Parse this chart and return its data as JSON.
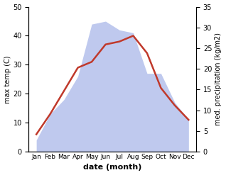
{
  "months": [
    "Jan",
    "Feb",
    "Mar",
    "Apr",
    "May",
    "Jun",
    "Jul",
    "Aug",
    "Sep",
    "Oct",
    "Nov",
    "Dec"
  ],
  "temperature": [
    6,
    13,
    21,
    29,
    31,
    37,
    38,
    40,
    34,
    22,
    16,
    11
  ],
  "precipitation_left_scale": [
    4,
    13,
    18,
    26,
    44,
    45,
    42,
    41,
    27,
    27,
    17,
    11
  ],
  "temp_color": "#c0392b",
  "precip_color_fill": "#b8c4ed",
  "temp_ylim": [
    0,
    50
  ],
  "precip_ylim": [
    0,
    35
  ],
  "left_ylim": [
    0,
    50
  ],
  "xlabel": "date (month)",
  "ylabel_left": "max temp (C)",
  "ylabel_right": "med. precipitation (kg/m2)",
  "temp_yticks": [
    0,
    10,
    20,
    30,
    40,
    50
  ],
  "precip_yticks": [
    0,
    5,
    10,
    15,
    20,
    25,
    30,
    35
  ]
}
